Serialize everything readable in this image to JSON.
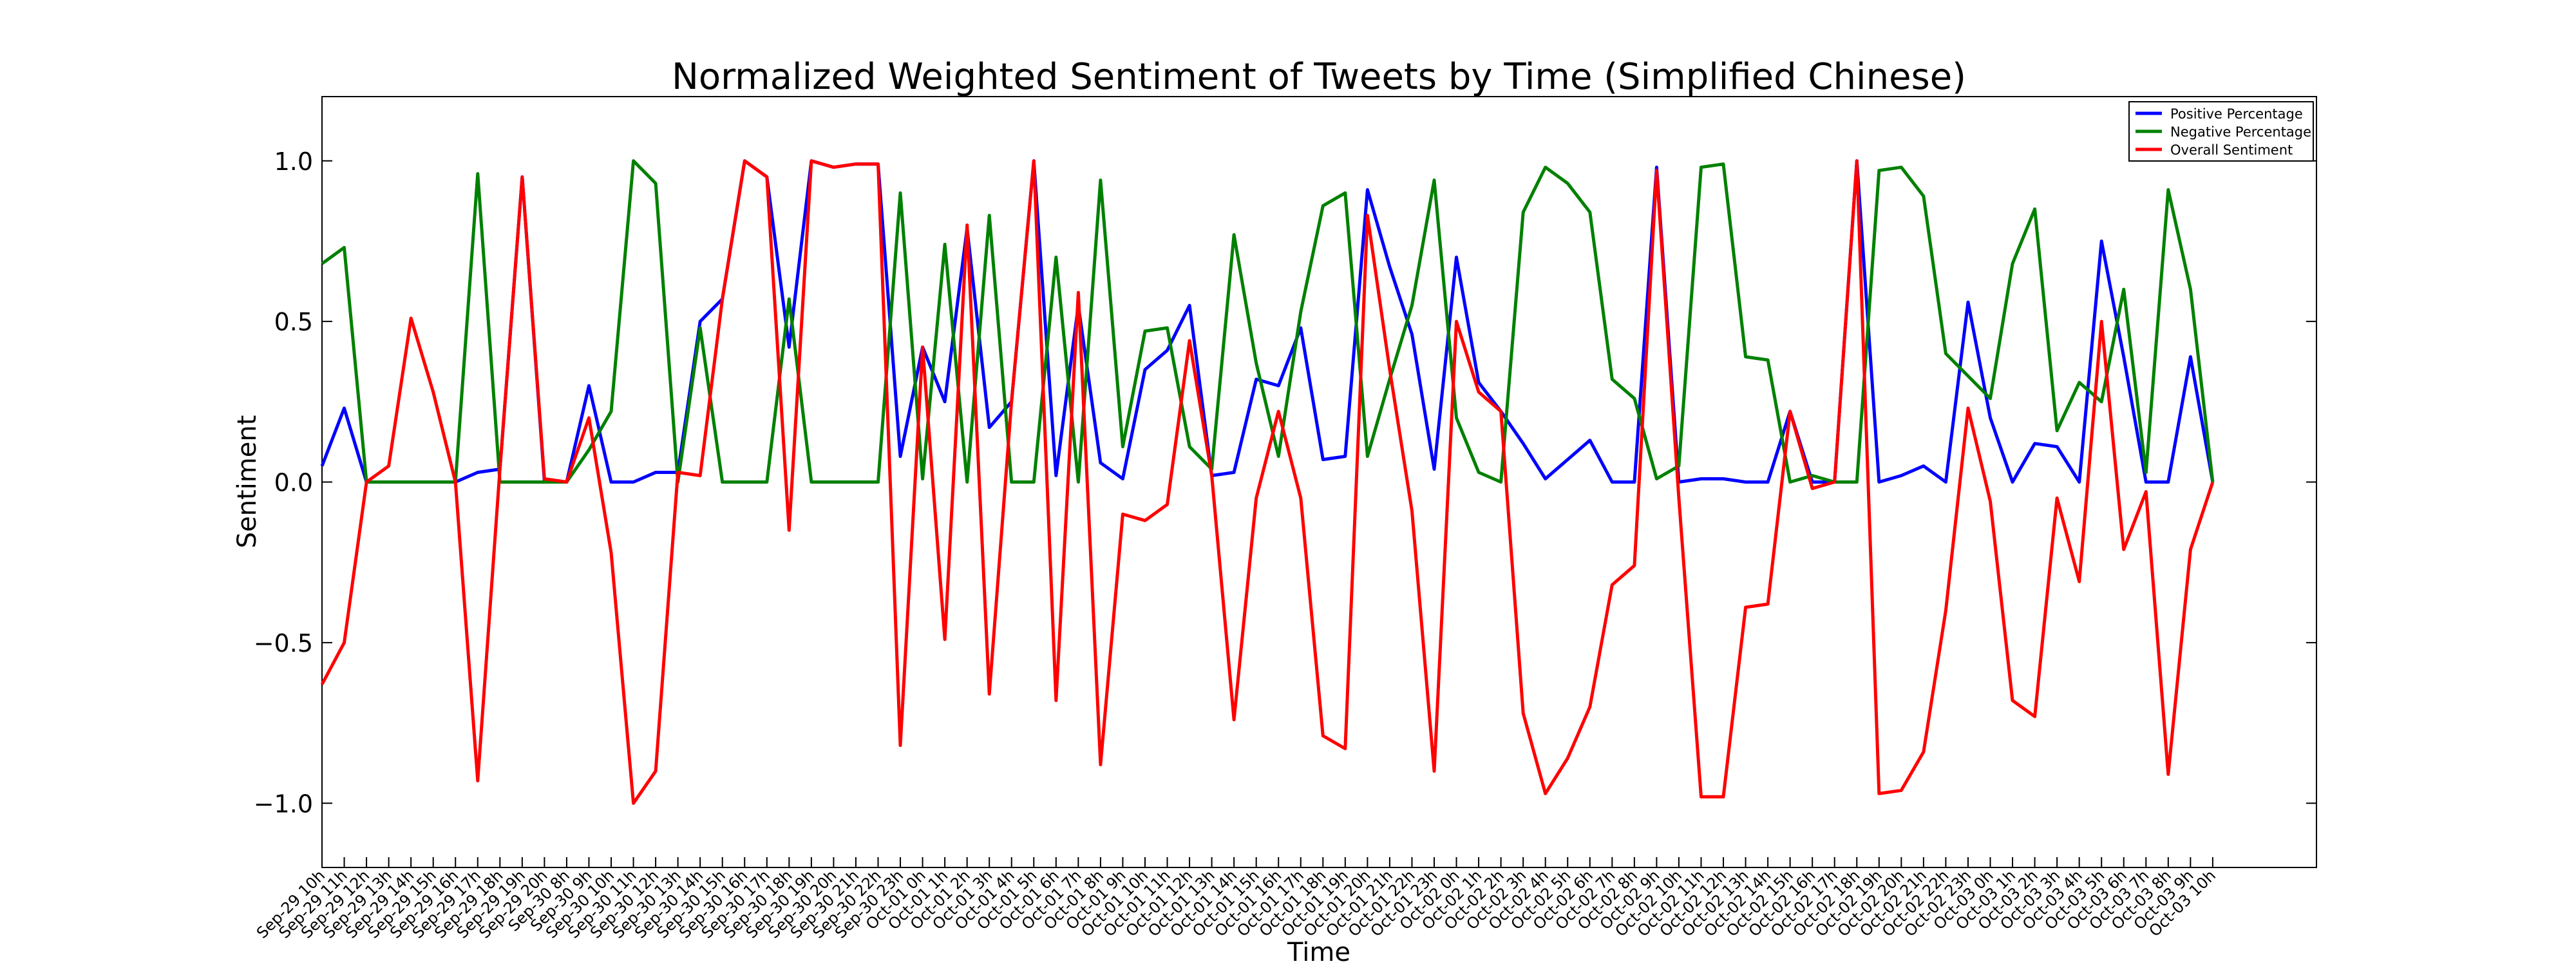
{
  "chart_data": {
    "type": "line",
    "title": "Normalized Weighted Sentiment of Tweets by Time (Simplified Chinese)",
    "x_label": "Time",
    "y_label": "Sentiment",
    "categories": [
      "Sep-29 10h",
      "Sep-29 11h",
      "Sep-29 12h",
      "Sep-29 13h",
      "Sep-29 14h",
      "Sep-29 15h",
      "Sep-29 16h",
      "Sep-29 17h",
      "Sep-29 18h",
      "Sep-29 19h",
      "Sep-29 20h",
      "Sep-30 8h",
      "Sep-30 9h",
      "Sep-30 10h",
      "Sep-30 11h",
      "Sep-30 12h",
      "Sep-30 13h",
      "Sep-30 14h",
      "Sep-30 15h",
      "Sep-30 16h",
      "Sep-30 17h",
      "Sep-30 18h",
      "Sep-30 19h",
      "Sep-30 20h",
      "Sep-30 21h",
      "Sep-30 22h",
      "Sep-30 23h",
      "Oct-01 0h",
      "Oct-01 1h",
      "Oct-01 2h",
      "Oct-01 3h",
      "Oct-01 4h",
      "Oct-01 5h",
      "Oct-01 6h",
      "Oct-01 7h",
      "Oct-01 8h",
      "Oct-01 9h",
      "Oct-01 10h",
      "Oct-01 11h",
      "Oct-01 12h",
      "Oct-01 13h",
      "Oct-01 14h",
      "Oct-01 15h",
      "Oct-01 16h",
      "Oct-01 17h",
      "Oct-01 18h",
      "Oct-01 19h",
      "Oct-01 20h",
      "Oct-01 21h",
      "Oct-01 22h",
      "Oct-01 23h",
      "Oct-02 0h",
      "Oct-02 1h",
      "Oct-02 2h",
      "Oct-02 3h",
      "Oct-02 4h",
      "Oct-02 5h",
      "Oct-02 6h",
      "Oct-02 7h",
      "Oct-02 8h",
      "Oct-02 9h",
      "Oct-02 10h",
      "Oct-02 11h",
      "Oct-02 12h",
      "Oct-02 13h",
      "Oct-02 14h",
      "Oct-02 15h",
      "Oct-02 16h",
      "Oct-02 17h",
      "Oct-02 18h",
      "Oct-02 19h",
      "Oct-02 20h",
      "Oct-02 21h",
      "Oct-02 22h",
      "Oct-02 23h",
      "Oct-03 0h",
      "Oct-03 1h",
      "Oct-03 2h",
      "Oct-03 3h",
      "Oct-03 4h",
      "Oct-03 5h",
      "Oct-03 6h",
      "Oct-03 7h",
      "Oct-03 8h",
      "Oct-03 9h",
      "Oct-03 10h"
    ],
    "series": [
      {
        "name": "Positive Percentage",
        "color": "#0000ff",
        "values": [
          0.05,
          0.23,
          0,
          0,
          0,
          0,
          0,
          0.03,
          0.04,
          0.95,
          0,
          0,
          0.3,
          0,
          0,
          0.03,
          0.03,
          0.5,
          0.57,
          1.0,
          0.95,
          0.42,
          1.0,
          0.98,
          0.99,
          0.99,
          0.08,
          0.42,
          0.25,
          0.79,
          0.17,
          0.25,
          1.0,
          0.02,
          0.55,
          0.06,
          0.01,
          0.35,
          0.41,
          0.55,
          0.02,
          0.03,
          0.32,
          0.3,
          0.48,
          0.07,
          0.08,
          0.91,
          0.67,
          0.46,
          0.04,
          0.7,
          0.31,
          0.22,
          0.12,
          0.01,
          0.07,
          0.13,
          0,
          0,
          0.98,
          0,
          0.01,
          0.01,
          0,
          0,
          0.22,
          0,
          0,
          1.0,
          0,
          0.02,
          0.05,
          0,
          0.56,
          0.2,
          0,
          0.12,
          0.11,
          0,
          0.75,
          0.39,
          0,
          0,
          0.39,
          0
        ]
      },
      {
        "name": "Negative Percentage",
        "color": "#008000",
        "values": [
          0.68,
          0.73,
          0,
          0,
          0,
          0,
          0,
          0.96,
          0,
          0,
          0,
          0,
          0.1,
          0.22,
          1.0,
          0.93,
          0,
          0.48,
          0,
          0,
          0,
          0.57,
          0,
          0,
          0,
          0,
          0.9,
          0.01,
          0.74,
          0,
          0.83,
          0,
          0,
          0.7,
          0,
          0.94,
          0.11,
          0.47,
          0.48,
          0.11,
          0.04,
          0.77,
          0.37,
          0.08,
          0.53,
          0.86,
          0.9,
          0.08,
          0.32,
          0.55,
          0.94,
          0.2,
          0.03,
          0,
          0.84,
          0.98,
          0.93,
          0.84,
          0.32,
          0.26,
          0.01,
          0.05,
          0.98,
          0.99,
          0.39,
          0.38,
          0,
          0.02,
          0,
          0,
          0.97,
          0.98,
          0.89,
          0.4,
          0.33,
          0.26,
          0.68,
          0.85,
          0.16,
          0.31,
          0.25,
          0.6,
          0.03,
          0.91,
          0.6,
          0
        ]
      },
      {
        "name": "Overall Sentiment",
        "color": "#ff0000",
        "values": [
          -0.63,
          -0.5,
          0,
          0.05,
          0.51,
          0.28,
          0,
          -0.93,
          0.04,
          0.95,
          0.01,
          0,
          0.2,
          -0.22,
          -1.0,
          -0.9,
          0.03,
          0.02,
          0.57,
          1.0,
          0.95,
          -0.15,
          1.0,
          0.98,
          0.99,
          0.99,
          -0.82,
          0.42,
          -0.49,
          0.8,
          -0.66,
          0.25,
          1.0,
          -0.68,
          0.59,
          -0.88,
          -0.1,
          -0.12,
          -0.07,
          0.44,
          0.02,
          -0.74,
          -0.05,
          0.22,
          -0.05,
          -0.79,
          -0.83,
          0.83,
          0.35,
          -0.09,
          -0.9,
          0.5,
          0.28,
          0.22,
          -0.72,
          -0.97,
          -0.86,
          -0.7,
          -0.32,
          -0.26,
          0.97,
          -0.05,
          -0.98,
          -0.98,
          -0.39,
          -0.38,
          0.22,
          -0.02,
          0,
          1.0,
          -0.97,
          -0.96,
          -0.84,
          -0.4,
          0.23,
          -0.06,
          -0.68,
          -0.73,
          -0.05,
          -0.31,
          0.5,
          -0.21,
          -0.03,
          -0.91,
          -0.21,
          0
        ]
      }
    ],
    "ylim": [
      -1.2,
      1.2
    ],
    "yticks": [
      {
        "value": -1.0,
        "label": "−1.0"
      },
      {
        "value": -0.5,
        "label": "−0.5"
      },
      {
        "value": 0.0,
        "label": "0.0"
      },
      {
        "value": 0.5,
        "label": "0.5"
      },
      {
        "value": 1.0,
        "label": "1.0"
      }
    ],
    "grid": false,
    "legend": "upper right"
  }
}
